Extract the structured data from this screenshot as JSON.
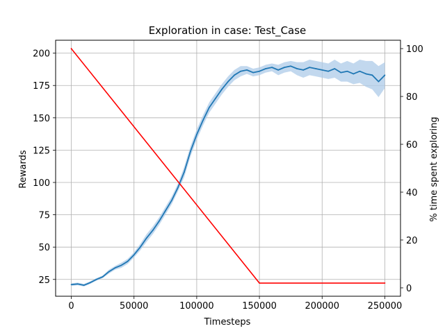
{
  "chart_data": {
    "type": "line",
    "title": "Exploration in case: Test_Case",
    "xlabel": "Timesteps",
    "ylabel": "Rewards",
    "y2label": "% time spent exploring",
    "xlim": [
      -12500,
      262500
    ],
    "ylim": [
      12,
      210
    ],
    "y2lim": [
      -3.5,
      103.5
    ],
    "grid": true,
    "x_ticks": [
      0,
      50000,
      100000,
      150000,
      200000,
      250000
    ],
    "x_tick_labels": [
      "0",
      "50000",
      "100000",
      "150000",
      "200000",
      "250000"
    ],
    "y_ticks": [
      25,
      50,
      75,
      100,
      125,
      150,
      175,
      200
    ],
    "y_tick_labels": [
      "25",
      "50",
      "75",
      "100",
      "125",
      "150",
      "175",
      "200"
    ],
    "y2_ticks": [
      0,
      20,
      40,
      60,
      80,
      100
    ],
    "y2_tick_labels": [
      "0",
      "20",
      "40",
      "60",
      "80",
      "100"
    ],
    "colors": {
      "rewards": "#1f77b4",
      "band": "#aecbe8",
      "exploring": "#ff0000",
      "grid": "#b0b0b0"
    },
    "series": [
      {
        "axis": "left",
        "x": [
          0,
          5000,
          10000,
          15000,
          20000,
          25000,
          30000,
          35000,
          40000,
          45000,
          50000,
          55000,
          60000,
          65000,
          70000,
          75000,
          80000,
          85000,
          90000,
          95000,
          100000,
          105000,
          110000,
          115000,
          120000,
          125000,
          130000,
          135000,
          140000,
          145000,
          150000,
          155000,
          160000,
          165000,
          170000,
          175000,
          180000,
          185000,
          190000,
          195000,
          200000,
          205000,
          210000,
          215000,
          220000,
          225000,
          230000,
          235000,
          240000,
          245000,
          250000
        ],
        "y": [
          21,
          21.5,
          20.5,
          22.5,
          25,
          27,
          31,
          34,
          36,
          39,
          44,
          50,
          57,
          63,
          70,
          78,
          86,
          96,
          108,
          124,
          137,
          148,
          158,
          165,
          172,
          178,
          183,
          186,
          187,
          185,
          186,
          188,
          189,
          187,
          189,
          190,
          188,
          187,
          189,
          188,
          187,
          186,
          188,
          185,
          186,
          184,
          186,
          184,
          183,
          178,
          183
        ],
        "band": [
          1,
          1,
          1,
          1,
          1,
          1,
          1.5,
          1.5,
          2,
          2,
          2,
          2.5,
          3,
          3,
          3,
          3,
          3,
          3,
          4,
          4,
          4,
          4,
          4,
          4,
          4,
          4,
          4,
          4,
          3,
          3,
          3,
          3,
          3,
          4,
          4,
          4,
          5,
          6,
          6,
          6,
          6,
          6,
          7,
          7,
          8,
          8,
          9,
          10,
          11,
          12,
          10
        ]
      },
      {
        "axis": "right",
        "x": [
          0,
          150000,
          250000
        ],
        "y": [
          100,
          2,
          2
        ]
      }
    ]
  }
}
